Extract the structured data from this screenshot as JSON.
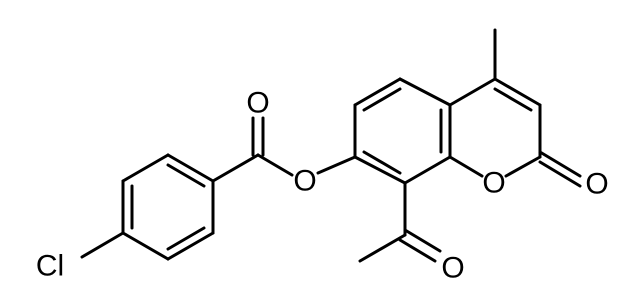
{
  "atoms": [
    {
      "label": "Cl"
    },
    {
      "label": "O"
    },
    {
      "label": "O"
    },
    {
      "label": "O"
    },
    {
      "label": "O"
    },
    {
      "label": "O"
    }
  ]
}
